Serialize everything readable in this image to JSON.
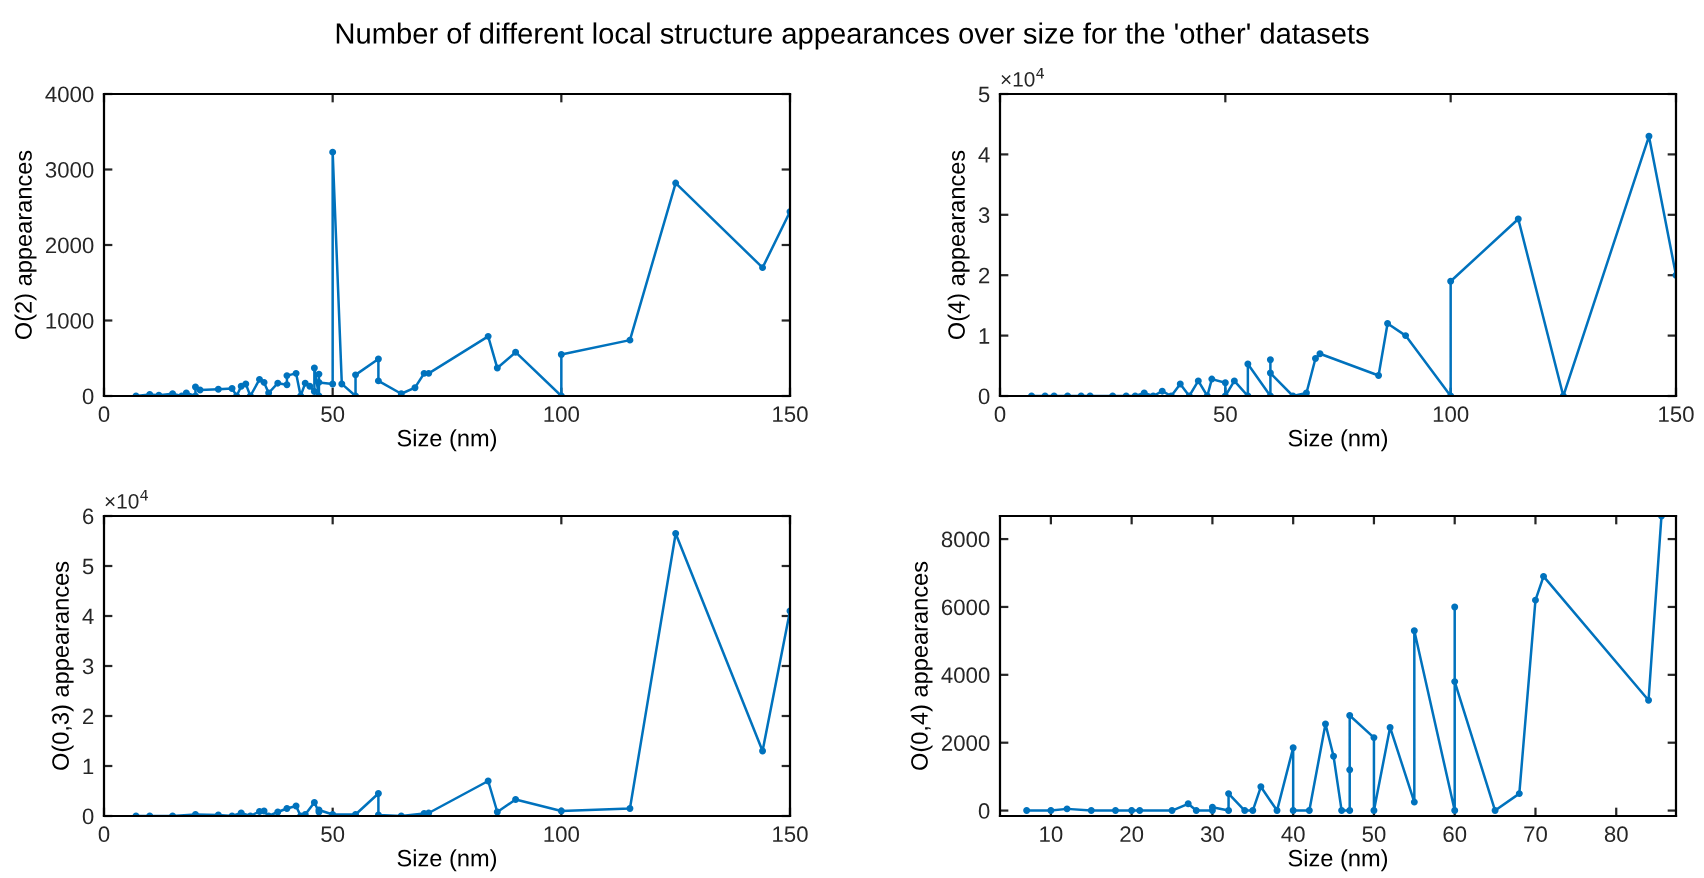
{
  "chart_data": [
    {
      "type": "line",
      "title": "Number of different local structure appearances over size for the 'other' datasets",
      "xlabel": "Size (nm)",
      "ylabel": "O(2) appearances",
      "color": "#0072bd",
      "marker": "circle",
      "grid": false,
      "legend": false,
      "x": [
        7,
        10,
        12,
        15,
        17,
        18,
        20,
        20,
        21,
        25,
        28,
        29,
        30,
        31,
        32,
        34,
        35,
        36,
        38,
        40,
        40,
        42,
        43,
        44,
        45,
        46,
        46,
        47,
        47,
        47,
        50,
        50,
        52,
        55,
        55,
        60,
        60,
        65,
        68,
        70,
        71,
        84,
        86,
        90,
        100,
        100,
        115,
        125,
        144,
        150
      ],
      "values": [
        0,
        20,
        10,
        30,
        0,
        40,
        0,
        120,
        80,
        90,
        100,
        0,
        130,
        160,
        0,
        220,
        180,
        40,
        170,
        150,
        270,
        300,
        0,
        170,
        130,
        60,
        370,
        0,
        290,
        180,
        160,
        3230,
        160,
        0,
        280,
        490,
        200,
        30,
        110,
        300,
        300,
        790,
        370,
        580,
        0,
        550,
        740,
        2820,
        1700,
        2440
      ],
      "xlim": [
        0,
        150
      ],
      "xticks": [
        0,
        50,
        100,
        150
      ],
      "ylim": [
        0,
        4000
      ],
      "yticks": [
        0,
        1000,
        2000,
        3000,
        4000
      ]
    },
    {
      "type": "line",
      "xlabel": "Size (nm)",
      "ylabel": "O(4) appearances",
      "color": "#0072bd",
      "marker": "circle",
      "grid": false,
      "legend": false,
      "annotations": [
        "×10$^{4}$"
      ],
      "x": [
        7,
        10,
        12,
        15,
        18,
        20,
        25,
        28,
        30,
        32,
        34,
        36,
        38,
        40,
        42,
        44,
        46,
        47,
        50,
        50,
        52,
        55,
        55,
        60,
        60,
        60,
        65,
        68,
        70,
        71,
        84,
        86,
        90,
        100,
        100,
        115,
        125,
        144,
        150
      ],
      "values": [
        0,
        0,
        0,
        0,
        0,
        0,
        0,
        0,
        0,
        0.05,
        0,
        0.08,
        0,
        0.2,
        0,
        0.25,
        0,
        0.28,
        0.22,
        0,
        0.25,
        0,
        0.53,
        0,
        0.6,
        0.38,
        0,
        0.05,
        0.62,
        0.7,
        0.34,
        1.2,
        1.0,
        0,
        1.9,
        2.93,
        0,
        4.3,
        2.0
      ],
      "xlim": [
        0,
        150
      ],
      "xticks": [
        0,
        50,
        100,
        150
      ],
      "ylim": [
        0,
        5
      ],
      "yticks": [
        0,
        1,
        2,
        3,
        4,
        5
      ]
    },
    {
      "type": "line",
      "xlabel": "Size (nm)",
      "ylabel": "O(0,3) appearances",
      "color": "#0072bd",
      "marker": "circle",
      "grid": false,
      "legend": false,
      "annotations": [
        "×10$^{4}$"
      ],
      "x": [
        7,
        10,
        15,
        20,
        25,
        28,
        30,
        32,
        34,
        35,
        36,
        38,
        40,
        42,
        43,
        44,
        46,
        47,
        47,
        50,
        55,
        60,
        60,
        65,
        70,
        71,
        84,
        86,
        90,
        100,
        115,
        125,
        144,
        150
      ],
      "values": [
        0,
        0,
        0,
        0.03,
        0.02,
        0,
        0.06,
        0,
        0.09,
        0.1,
        0,
        0.08,
        0.15,
        0.2,
        0,
        0.03,
        0.27,
        0.08,
        0.12,
        0.03,
        0.03,
        0.45,
        0.02,
        0,
        0.05,
        0.06,
        0.7,
        0.08,
        0.33,
        0.1,
        0.15,
        5.65,
        1.3,
        4.1
      ],
      "xlim": [
        0,
        150
      ],
      "xticks": [
        0,
        50,
        100,
        150
      ],
      "ylim": [
        0,
        6
      ],
      "yticks": [
        0,
        1,
        2,
        3,
        4,
        5,
        6
      ]
    },
    {
      "type": "line",
      "xlabel": "Size (nm)",
      "ylabel": "O(0,4) appearances",
      "color": "#0072bd",
      "marker": "circle",
      "grid": false,
      "legend": false,
      "x": [
        7,
        10,
        12,
        15,
        18,
        20,
        21,
        25,
        27,
        28,
        30,
        30,
        32,
        32,
        34,
        35,
        36,
        38,
        40,
        40,
        42,
        44,
        45,
        46,
        47,
        47,
        47,
        50,
        50,
        52,
        55,
        55,
        60,
        60,
        60,
        65,
        68,
        70,
        71,
        84,
        85.6
      ],
      "values": [
        0,
        0,
        50,
        0,
        0,
        0,
        0,
        0,
        200,
        0,
        0,
        100,
        0,
        500,
        0,
        0,
        700,
        0,
        1850,
        0,
        0,
        2550,
        1600,
        0,
        0,
        1200,
        2800,
        2150,
        0,
        2450,
        250,
        5300,
        0,
        6000,
        3800,
        0,
        500,
        6200,
        6900,
        3250,
        8680
      ],
      "xlim": [
        3.7,
        87.4
      ],
      "xticks": [
        10,
        20,
        30,
        40,
        50,
        60,
        70,
        80
      ],
      "ylim": [
        -160,
        8680
      ],
      "yticks": [
        0,
        2000,
        4000,
        6000,
        8000
      ]
    }
  ]
}
